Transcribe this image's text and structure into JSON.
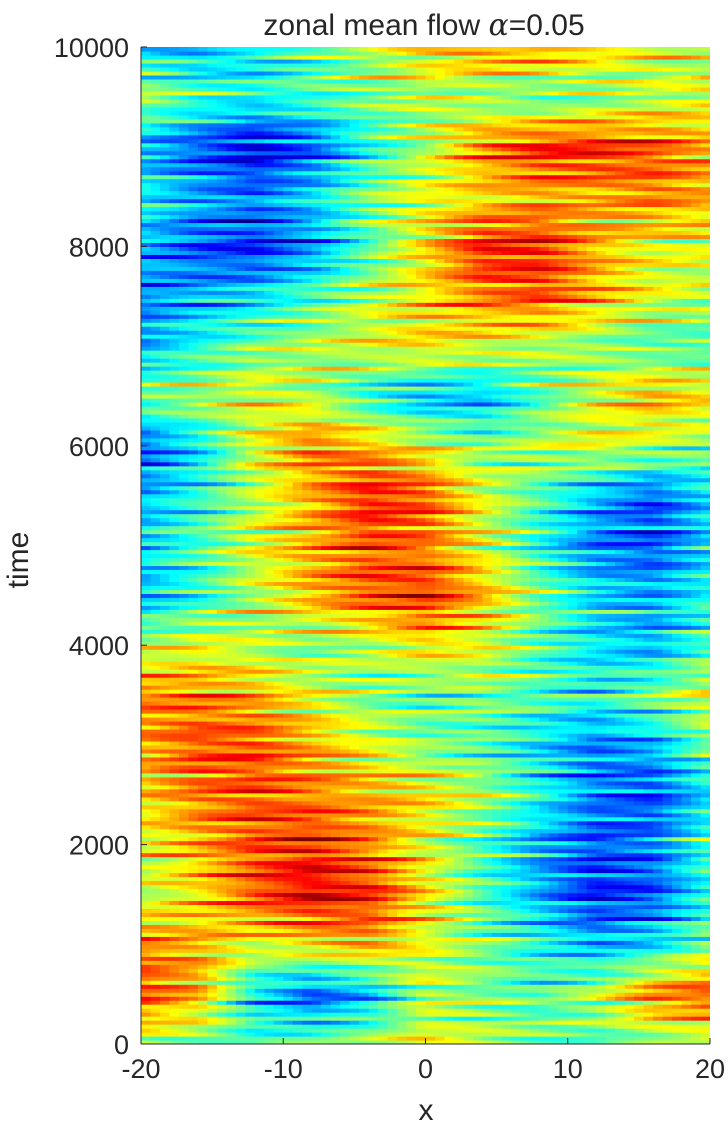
{
  "chart_data": {
    "type": "heatmap",
    "title": "zonal mean flow  ",
    "title_symbol": "α",
    "title_value": "=0.05",
    "xlabel": "x",
    "ylabel": "time",
    "xlim": [
      -20,
      20
    ],
    "ylim": [
      0,
      10000
    ],
    "x_ticks": [
      -20,
      -10,
      0,
      10,
      20
    ],
    "x_tick_labels": [
      "-20",
      "-10",
      "0",
      "10",
      "20"
    ],
    "y_ticks": [
      0,
      2000,
      4000,
      6000,
      8000,
      10000
    ],
    "y_tick_labels": [
      "0",
      "2000",
      "4000",
      "6000",
      "8000",
      "10000"
    ],
    "colormap": "jet",
    "grid": false,
    "colorbar": false,
    "field_x_step": 4,
    "field_time_step": 500,
    "field_x": [
      -20,
      -16,
      -12,
      -8,
      -4,
      0,
      4,
      8,
      12,
      16,
      20
    ],
    "field_time": [
      0,
      500,
      1000,
      1500,
      2000,
      2500,
      3000,
      3500,
      4000,
      4500,
      5000,
      5500,
      6000,
      6500,
      7000,
      7500,
      8000,
      8500,
      9000,
      9500,
      10000
    ],
    "field_values": [
      [
        0.55,
        0.5,
        0.45,
        0.5,
        0.55,
        0.6,
        0.55,
        0.5,
        0.45,
        0.5,
        0.55
      ],
      [
        0.8,
        0.7,
        0.35,
        0.2,
        0.3,
        0.55,
        0.5,
        0.45,
        0.55,
        0.75,
        0.8
      ],
      [
        0.75,
        0.7,
        0.6,
        0.65,
        0.7,
        0.6,
        0.5,
        0.4,
        0.3,
        0.35,
        0.5
      ],
      [
        0.55,
        0.65,
        0.8,
        0.9,
        0.85,
        0.65,
        0.45,
        0.3,
        0.15,
        0.2,
        0.4
      ],
      [
        0.6,
        0.7,
        0.8,
        0.85,
        0.75,
        0.6,
        0.45,
        0.3,
        0.2,
        0.25,
        0.45
      ],
      [
        0.65,
        0.75,
        0.8,
        0.75,
        0.7,
        0.65,
        0.55,
        0.4,
        0.25,
        0.2,
        0.35
      ],
      [
        0.7,
        0.8,
        0.8,
        0.7,
        0.6,
        0.5,
        0.45,
        0.35,
        0.25,
        0.3,
        0.5
      ],
      [
        0.75,
        0.75,
        0.7,
        0.6,
        0.5,
        0.45,
        0.5,
        0.45,
        0.4,
        0.5,
        0.6
      ],
      [
        0.55,
        0.6,
        0.55,
        0.5,
        0.55,
        0.65,
        0.6,
        0.45,
        0.35,
        0.3,
        0.45
      ],
      [
        0.3,
        0.4,
        0.55,
        0.7,
        0.8,
        0.85,
        0.7,
        0.5,
        0.35,
        0.3,
        0.4
      ],
      [
        0.35,
        0.45,
        0.6,
        0.7,
        0.8,
        0.75,
        0.6,
        0.4,
        0.25,
        0.2,
        0.35
      ],
      [
        0.3,
        0.4,
        0.55,
        0.7,
        0.85,
        0.8,
        0.6,
        0.45,
        0.3,
        0.2,
        0.35
      ],
      [
        0.2,
        0.35,
        0.6,
        0.75,
        0.7,
        0.6,
        0.5,
        0.55,
        0.6,
        0.55,
        0.5
      ],
      [
        0.5,
        0.55,
        0.6,
        0.55,
        0.4,
        0.3,
        0.3,
        0.45,
        0.6,
        0.7,
        0.65
      ],
      [
        0.3,
        0.4,
        0.5,
        0.55,
        0.6,
        0.65,
        0.6,
        0.55,
        0.5,
        0.45,
        0.45
      ],
      [
        0.25,
        0.3,
        0.35,
        0.45,
        0.55,
        0.65,
        0.75,
        0.8,
        0.7,
        0.6,
        0.55
      ],
      [
        0.3,
        0.2,
        0.15,
        0.25,
        0.45,
        0.65,
        0.85,
        0.85,
        0.7,
        0.6,
        0.6
      ],
      [
        0.4,
        0.3,
        0.25,
        0.35,
        0.5,
        0.6,
        0.65,
        0.7,
        0.7,
        0.75,
        0.7
      ],
      [
        0.3,
        0.2,
        0.1,
        0.2,
        0.4,
        0.55,
        0.75,
        0.85,
        0.85,
        0.8,
        0.7
      ],
      [
        0.55,
        0.45,
        0.4,
        0.45,
        0.5,
        0.55,
        0.5,
        0.45,
        0.5,
        0.55,
        0.6
      ],
      [
        0.35,
        0.3,
        0.35,
        0.45,
        0.55,
        0.65,
        0.75,
        0.75,
        0.65,
        0.6,
        0.55
      ]
    ]
  }
}
